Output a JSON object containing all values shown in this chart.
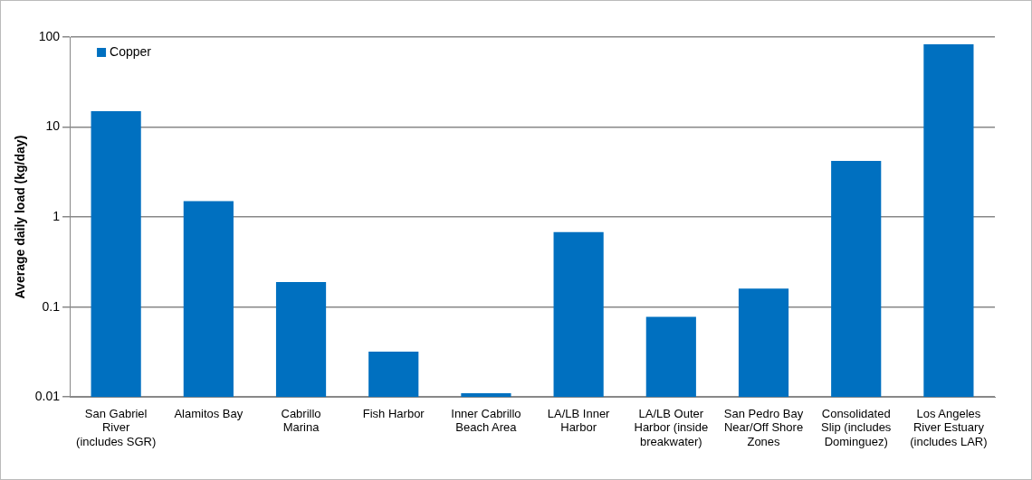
{
  "chart_data": {
    "type": "bar",
    "ylabel": "Average daily load (kg/day)",
    "categories": [
      "San Gabriel River (includes SGR)",
      "Alamitos Bay",
      "Cabrillo Marina",
      "Fish Harbor",
      "Inner Cabrillo Beach Area",
      "LA/LB Inner Harbor",
      "LA/LB Outer Harbor (inside breakwater)",
      "San Pedro Bay Near/Off Shore Zones",
      "Consolidated Slip (includes Dominguez)",
      "Los Angeles River Estuary (includes LAR)"
    ],
    "series": [
      {
        "name": "Copper",
        "color": "#0070c0",
        "values": [
          15,
          1.5,
          0.19,
          0.032,
          0.011,
          0.68,
          0.078,
          0.16,
          4.2,
          83
        ]
      }
    ],
    "log": "y",
    "ylim": [
      0.01,
      100
    ],
    "yticks": [
      0.01,
      0.1,
      1,
      10,
      100
    ],
    "grid": "y",
    "legend": "top left"
  }
}
